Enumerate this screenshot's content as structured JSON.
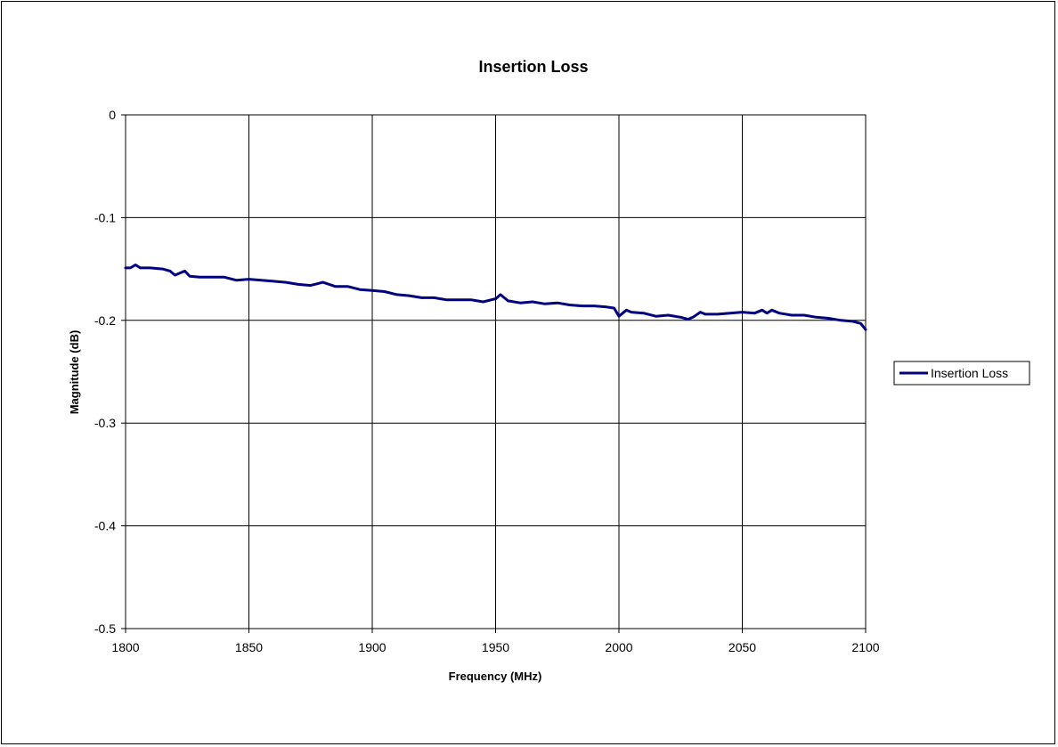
{
  "chart_data": {
    "type": "line",
    "title": "Insertion Loss",
    "xlabel": "Frequency (MHz)",
    "ylabel": "Magnitude (dB)",
    "xlim": [
      1800,
      2100
    ],
    "ylim": [
      -0.5,
      0
    ],
    "x_ticks": [
      1800,
      1850,
      1900,
      1950,
      2000,
      2050,
      2100
    ],
    "y_ticks": [
      0,
      -0.1,
      -0.2,
      -0.3,
      -0.4,
      -0.5
    ],
    "x_tick_labels": [
      "1800",
      "1850",
      "1900",
      "1950",
      "2000",
      "2050",
      "2100"
    ],
    "y_tick_labels": [
      "0",
      "-0.1",
      "-0.2",
      "-0.3",
      "-0.4",
      "-0.5"
    ],
    "grid": true,
    "legend_position": "right",
    "series": [
      {
        "name": "Insertion Loss",
        "color": "#000080",
        "x": [
          1800,
          1802,
          1804,
          1806,
          1810,
          1815,
          1818,
          1820,
          1822,
          1824,
          1826,
          1830,
          1835,
          1840,
          1845,
          1850,
          1855,
          1860,
          1865,
          1870,
          1875,
          1880,
          1885,
          1890,
          1895,
          1900,
          1905,
          1910,
          1915,
          1920,
          1925,
          1930,
          1935,
          1940,
          1945,
          1950,
          1952,
          1955,
          1960,
          1965,
          1970,
          1975,
          1980,
          1985,
          1990,
          1995,
          1998,
          2000,
          2003,
          2005,
          2010,
          2015,
          2020,
          2025,
          2028,
          2030,
          2033,
          2035,
          2040,
          2045,
          2050,
          2055,
          2058,
          2060,
          2062,
          2065,
          2070,
          2075,
          2080,
          2085,
          2090,
          2095,
          2098,
          2100
        ],
        "y": [
          -0.149,
          -0.149,
          -0.146,
          -0.149,
          -0.149,
          -0.15,
          -0.152,
          -0.156,
          -0.154,
          -0.152,
          -0.157,
          -0.158,
          -0.158,
          -0.158,
          -0.161,
          -0.16,
          -0.161,
          -0.162,
          -0.163,
          -0.165,
          -0.166,
          -0.163,
          -0.167,
          -0.167,
          -0.17,
          -0.171,
          -0.172,
          -0.175,
          -0.176,
          -0.178,
          -0.178,
          -0.18,
          -0.18,
          -0.18,
          -0.182,
          -0.179,
          -0.175,
          -0.181,
          -0.183,
          -0.182,
          -0.184,
          -0.183,
          -0.185,
          -0.186,
          -0.186,
          -0.187,
          -0.188,
          -0.196,
          -0.19,
          -0.192,
          -0.193,
          -0.196,
          -0.195,
          -0.197,
          -0.199,
          -0.197,
          -0.192,
          -0.194,
          -0.194,
          -0.193,
          -0.192,
          -0.193,
          -0.19,
          -0.193,
          -0.19,
          -0.193,
          -0.195,
          -0.195,
          -0.197,
          -0.198,
          -0.2,
          -0.201,
          -0.203,
          -0.209
        ]
      }
    ]
  }
}
